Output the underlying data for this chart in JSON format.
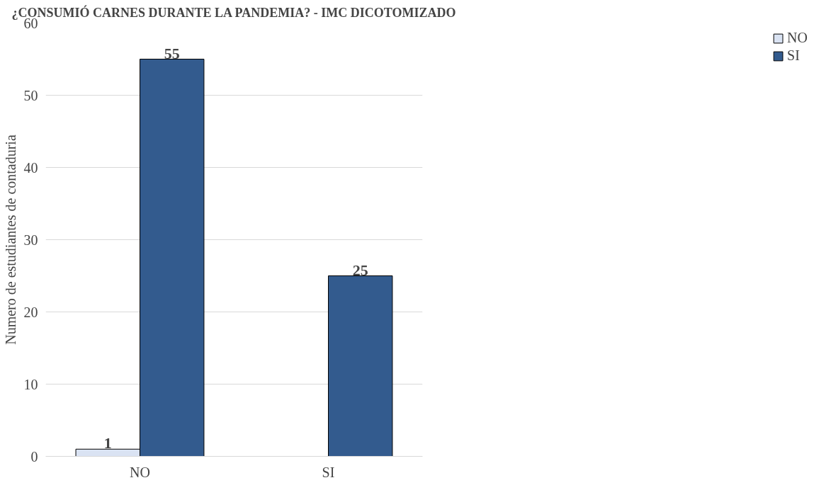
{
  "chart_data": {
    "type": "bar",
    "title": "¿CONSUMIÓ CARNES DURANTE LA PANDEMIA? - IMC DICOTOMIZADO",
    "ylabel": "Numero de estudiantes de contaduria",
    "categories": [
      "NO",
      "SI"
    ],
    "series": [
      {
        "name": "NO",
        "color": "#dae3f3",
        "values": [
          1,
          null
        ]
      },
      {
        "name": "SI",
        "color": "#335b8e",
        "values": [
          55,
          25
        ]
      }
    ],
    "ylim": [
      0,
      60
    ],
    "yticks": [
      0,
      10,
      20,
      30,
      40,
      50,
      60
    ],
    "grid": "y",
    "legend": "right",
    "data_labels": true
  }
}
